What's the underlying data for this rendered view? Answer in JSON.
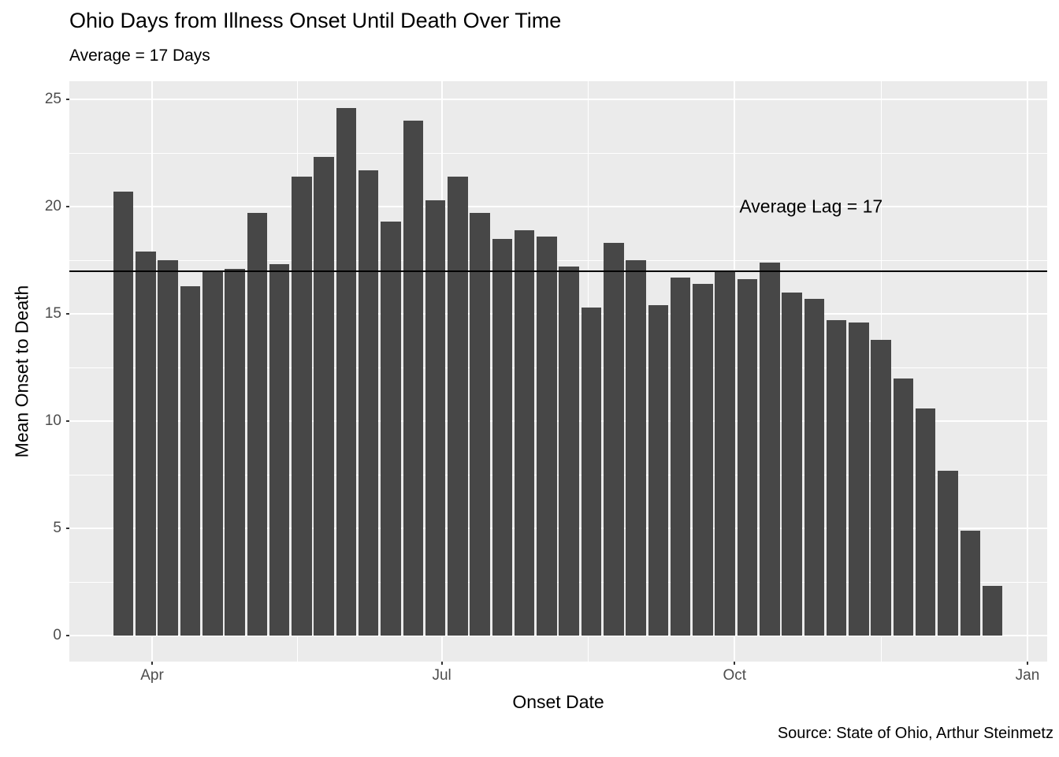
{
  "chart_data": {
    "type": "bar",
    "title": "Ohio Days from Illness Onset Until Death Over Time",
    "subtitle": "Average = 17 Days",
    "xlabel": "Onset Date",
    "ylabel": "Mean Onset to Death",
    "caption": "Source: State of Ohio, Arthur Steinmetz",
    "x": [
      "2020-03-23",
      "2020-03-30",
      "2020-04-06",
      "2020-04-13",
      "2020-04-20",
      "2020-04-27",
      "2020-05-04",
      "2020-05-11",
      "2020-05-18",
      "2020-05-25",
      "2020-06-01",
      "2020-06-08",
      "2020-06-15",
      "2020-06-22",
      "2020-06-29",
      "2020-07-06",
      "2020-07-13",
      "2020-07-20",
      "2020-07-27",
      "2020-08-03",
      "2020-08-10",
      "2020-08-17",
      "2020-08-24",
      "2020-08-31",
      "2020-09-07",
      "2020-09-14",
      "2020-09-21",
      "2020-09-28",
      "2020-10-05",
      "2020-10-12",
      "2020-10-19",
      "2020-10-26",
      "2020-11-02",
      "2020-11-09",
      "2020-11-16",
      "2020-11-23",
      "2020-11-30",
      "2020-12-07",
      "2020-12-14",
      "2020-12-21"
    ],
    "values": [
      20.7,
      17.9,
      17.5,
      16.3,
      17.0,
      17.1,
      19.7,
      17.3,
      21.4,
      22.3,
      24.6,
      21.7,
      19.3,
      24.0,
      20.3,
      21.4,
      19.7,
      18.5,
      18.9,
      18.6,
      17.2,
      15.3,
      18.3,
      17.5,
      15.4,
      16.7,
      16.4,
      17.0,
      16.6,
      17.4,
      16.0,
      15.7,
      14.7,
      14.6,
      13.8,
      12.0,
      10.6,
      7.7,
      4.9,
      2.3
    ],
    "x_ticks": [
      {
        "label": "Apr",
        "date": "2020-04-01"
      },
      {
        "label": "Jul",
        "date": "2020-07-01"
      },
      {
        "label": "Oct",
        "date": "2020-10-01"
      },
      {
        "label": "Jan",
        "date": "2021-01-01"
      }
    ],
    "y_ticks": [
      0,
      5,
      10,
      15,
      20,
      25
    ],
    "ylim": [
      0,
      25
    ],
    "grid": "on",
    "legend": "none",
    "reference_line": {
      "y": 17
    },
    "annotation": {
      "text": "Average Lag = 17",
      "x_date": "2020-10-25",
      "y_value": 20
    },
    "colors": {
      "bar": "#474747",
      "panel_bg": "#EBEBEB",
      "gridline": "#FFFFFF",
      "reference_line": "#000000",
      "tick_label": "#4D4D4D",
      "text": "#000000"
    }
  }
}
